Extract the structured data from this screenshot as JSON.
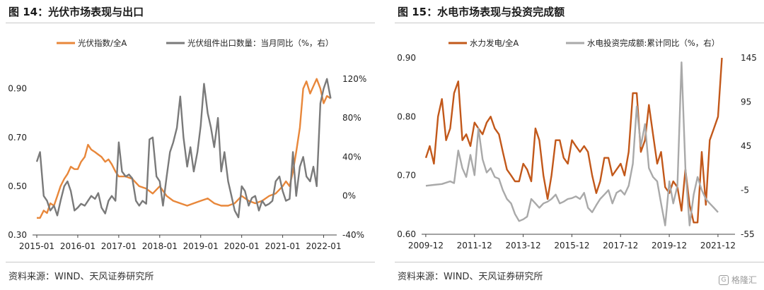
{
  "left_panel": {
    "title": "图 14：光伏市场表现与出口",
    "source": "资料来源：WIND、天风证券研究所"
  },
  "right_panel": {
    "title": "图 15：水电市场表现与投资完成额",
    "source": "资料来源：WIND、天风证券研究所"
  },
  "watermark": {
    "text": "格隆汇",
    "icon": "logo-icon"
  },
  "chart_data": [
    {
      "type": "line",
      "title": "图 14：光伏市场表现与出口",
      "x_ticks": [
        "2015-01",
        "2016-01",
        "2017-01",
        "2018-01",
        "2019-01",
        "2020-01",
        "2021-01",
        "2022-01"
      ],
      "x_range": [
        2015.0,
        2022.25
      ],
      "y_left": {
        "ticks": [
          "0.30",
          "0.50",
          "0.70",
          "0.90"
        ],
        "range": [
          0.3,
          0.98
        ]
      },
      "y_right": {
        "ticks": [
          "-40%",
          "0%",
          "40%",
          "80%",
          "120%"
        ],
        "range": [
          -40,
          130
        ]
      },
      "legend_position": "top",
      "series": [
        {
          "name": "光伏指数/全A",
          "axis": "left",
          "color": "#e8873a",
          "x": [
            2015.0,
            2015.08,
            2015.17,
            2015.25,
            2015.33,
            2015.42,
            2015.5,
            2015.58,
            2015.67,
            2015.75,
            2015.83,
            2015.92,
            2016.0,
            2016.08,
            2016.17,
            2016.25,
            2016.33,
            2016.42,
            2016.5,
            2016.58,
            2016.67,
            2016.75,
            2016.83,
            2016.92,
            2017.0,
            2017.17,
            2017.33,
            2017.5,
            2017.67,
            2017.83,
            2018.0,
            2018.17,
            2018.33,
            2018.5,
            2018.67,
            2018.83,
            2019.0,
            2019.17,
            2019.33,
            2019.5,
            2019.67,
            2019.83,
            2020.0,
            2020.17,
            2020.33,
            2020.5,
            2020.67,
            2020.83,
            2021.0,
            2021.08,
            2021.17,
            2021.25,
            2021.33,
            2021.42,
            2021.5,
            2021.58,
            2021.67,
            2021.75,
            2021.83,
            2021.92,
            2022.0,
            2022.08,
            2022.17
          ],
          "values": [
            0.37,
            0.37,
            0.4,
            0.39,
            0.43,
            0.42,
            0.46,
            0.5,
            0.53,
            0.55,
            0.58,
            0.57,
            0.57,
            0.6,
            0.62,
            0.67,
            0.65,
            0.64,
            0.63,
            0.62,
            0.6,
            0.61,
            0.59,
            0.56,
            0.54,
            0.54,
            0.53,
            0.5,
            0.49,
            0.47,
            0.5,
            0.46,
            0.44,
            0.43,
            0.42,
            0.43,
            0.44,
            0.45,
            0.43,
            0.42,
            0.42,
            0.43,
            0.46,
            0.44,
            0.43,
            0.44,
            0.46,
            0.47,
            0.5,
            0.52,
            0.5,
            0.56,
            0.64,
            0.74,
            0.9,
            0.93,
            0.88,
            0.91,
            0.94,
            0.9,
            0.84,
            0.87,
            0.86
          ]
        },
        {
          "name": "光伏组件出口数量：当月同比（%，右）",
          "axis": "right",
          "color": "#7a7a7a",
          "x": [
            2015.0,
            2015.08,
            2015.17,
            2015.25,
            2015.33,
            2015.42,
            2015.5,
            2015.58,
            2015.67,
            2015.75,
            2015.83,
            2015.92,
            2016.0,
            2016.08,
            2016.17,
            2016.25,
            2016.33,
            2016.42,
            2016.5,
            2016.58,
            2016.67,
            2016.75,
            2016.83,
            2016.92,
            2017.0,
            2017.08,
            2017.17,
            2017.25,
            2017.33,
            2017.42,
            2017.5,
            2017.58,
            2017.67,
            2017.75,
            2017.83,
            2017.92,
            2018.0,
            2018.08,
            2018.17,
            2018.25,
            2018.33,
            2018.42,
            2018.5,
            2018.58,
            2018.67,
            2018.75,
            2018.83,
            2018.92,
            2019.0,
            2019.08,
            2019.17,
            2019.25,
            2019.33,
            2019.42,
            2019.5,
            2019.58,
            2019.67,
            2019.75,
            2019.83,
            2019.92,
            2020.0,
            2020.08,
            2020.17,
            2020.25,
            2020.33,
            2020.42,
            2020.5,
            2020.58,
            2020.67,
            2020.75,
            2020.83,
            2020.92,
            2021.0,
            2021.08,
            2021.17,
            2021.25,
            2021.33,
            2021.42,
            2021.5,
            2021.58,
            2021.67,
            2021.75,
            2021.83,
            2021.92,
            2022.0,
            2022.08,
            2022.17
          ],
          "values": [
            35,
            45,
            0,
            -5,
            -15,
            -10,
            -20,
            -5,
            10,
            15,
            5,
            -15,
            -12,
            -8,
            -10,
            -5,
            0,
            -3,
            3,
            -12,
            -18,
            -5,
            0,
            -5,
            55,
            25,
            20,
            22,
            18,
            -5,
            -10,
            -5,
            -8,
            58,
            60,
            20,
            15,
            -10,
            20,
            45,
            55,
            70,
            102,
            60,
            30,
            50,
            25,
            45,
            72,
            115,
            85,
            70,
            50,
            80,
            25,
            45,
            15,
            0,
            -15,
            -22,
            10,
            5,
            -10,
            -2,
            0,
            -15,
            -5,
            -10,
            -8,
            -5,
            15,
            20,
            5,
            -5,
            -3,
            45,
            0,
            30,
            40,
            20,
            15,
            30,
            10,
            95,
            110,
            120,
            100
          ]
        }
      ]
    },
    {
      "type": "line",
      "title": "图 15：水电市场表现与投资完成额",
      "x_ticks": [
        "2009-12",
        "2011-12",
        "2013-12",
        "2015-12",
        "2017-12",
        "2019-12",
        "2021-12"
      ],
      "x_range": [
        2009.92,
        2022.5
      ],
      "y_left": {
        "ticks": [
          "0.60",
          "0.70",
          "0.80",
          "0.90"
        ],
        "range": [
          0.6,
          0.9
        ]
      },
      "y_right": {
        "ticks": [
          "-55",
          "-5",
          "45",
          "95",
          "145"
        ],
        "range": [
          -55,
          145
        ]
      },
      "legend_position": "top",
      "series": [
        {
          "name": "水力发电/全A",
          "axis": "left",
          "color": "#c2581a",
          "x": [
            2009.92,
            2010.08,
            2010.25,
            2010.42,
            2010.58,
            2010.75,
            2010.92,
            2011.08,
            2011.25,
            2011.42,
            2011.58,
            2011.75,
            2011.92,
            2012.08,
            2012.25,
            2012.42,
            2012.58,
            2012.75,
            2012.92,
            2013.08,
            2013.25,
            2013.42,
            2013.58,
            2013.75,
            2013.92,
            2014.08,
            2014.25,
            2014.42,
            2014.58,
            2014.75,
            2014.92,
            2015.08,
            2015.25,
            2015.42,
            2015.58,
            2015.75,
            2015.92,
            2016.08,
            2016.25,
            2016.42,
            2016.58,
            2016.75,
            2016.92,
            2017.08,
            2017.25,
            2017.42,
            2017.58,
            2017.75,
            2017.92,
            2018.08,
            2018.25,
            2018.42,
            2018.58,
            2018.75,
            2018.92,
            2019.08,
            2019.25,
            2019.42,
            2019.58,
            2019.75,
            2019.92,
            2020.08,
            2020.25,
            2020.42,
            2020.58,
            2020.75,
            2020.92,
            2021.08,
            2021.25,
            2021.42,
            2021.58,
            2021.75,
            2021.92,
            2022.08
          ],
          "values": [
            0.73,
            0.75,
            0.72,
            0.8,
            0.83,
            0.76,
            0.78,
            0.84,
            0.86,
            0.76,
            0.77,
            0.75,
            0.79,
            0.78,
            0.77,
            0.79,
            0.8,
            0.78,
            0.77,
            0.74,
            0.71,
            0.7,
            0.69,
            0.69,
            0.72,
            0.71,
            0.69,
            0.78,
            0.76,
            0.7,
            0.66,
            0.7,
            0.76,
            0.76,
            0.73,
            0.72,
            0.76,
            0.75,
            0.74,
            0.75,
            0.74,
            0.7,
            0.67,
            0.69,
            0.73,
            0.73,
            0.7,
            0.71,
            0.72,
            0.7,
            0.74,
            0.84,
            0.84,
            0.74,
            0.76,
            0.82,
            0.77,
            0.72,
            0.74,
            0.68,
            0.67,
            0.69,
            0.68,
            0.64,
            0.71,
            0.65,
            0.62,
            0.62,
            0.74,
            0.65,
            0.76,
            0.78,
            0.8,
            0.9
          ]
        },
        {
          "name": "水电投资完成额:累计同比（%，右）",
          "axis": "right",
          "color": "#a9a9a9",
          "x": [
            2009.92,
            2010.25,
            2010.58,
            2010.92,
            2011.08,
            2011.25,
            2011.42,
            2011.58,
            2011.75,
            2011.92,
            2012.08,
            2012.25,
            2012.42,
            2012.58,
            2012.75,
            2012.92,
            2013.08,
            2013.25,
            2013.42,
            2013.58,
            2013.75,
            2013.92,
            2014.08,
            2014.25,
            2014.42,
            2014.58,
            2014.75,
            2014.92,
            2015.08,
            2015.25,
            2015.42,
            2015.58,
            2015.75,
            2015.92,
            2016.08,
            2016.25,
            2016.42,
            2016.58,
            2016.75,
            2016.92,
            2017.08,
            2017.25,
            2017.42,
            2017.58,
            2017.75,
            2017.92,
            2018.08,
            2018.25,
            2018.42,
            2018.58,
            2018.75,
            2018.92,
            2019.08,
            2019.25,
            2019.42,
            2019.58,
            2019.75,
            2019.92,
            2020.08,
            2020.25,
            2020.42,
            2020.58,
            2020.75,
            2020.92,
            2021.08,
            2021.25,
            2021.42,
            2021.58,
            2021.75,
            2021.92
          ],
          "values": [
            0,
            1,
            2,
            5,
            3,
            40,
            20,
            10,
            35,
            12,
            65,
            30,
            15,
            20,
            10,
            8,
            -5,
            -15,
            -20,
            -32,
            -40,
            -38,
            -35,
            -15,
            -20,
            -25,
            -20,
            -18,
            -15,
            -10,
            -20,
            -18,
            -15,
            -14,
            -12,
            -15,
            -8,
            -25,
            -30,
            -22,
            -15,
            -10,
            -5,
            -20,
            -8,
            -5,
            -10,
            0,
            25,
            90,
            45,
            70,
            20,
            10,
            5,
            -20,
            -45,
            5,
            -20,
            0,
            140,
            20,
            -45,
            -10,
            10,
            -5,
            -15,
            -20,
            -25,
            -30
          ]
        }
      ]
    }
  ]
}
